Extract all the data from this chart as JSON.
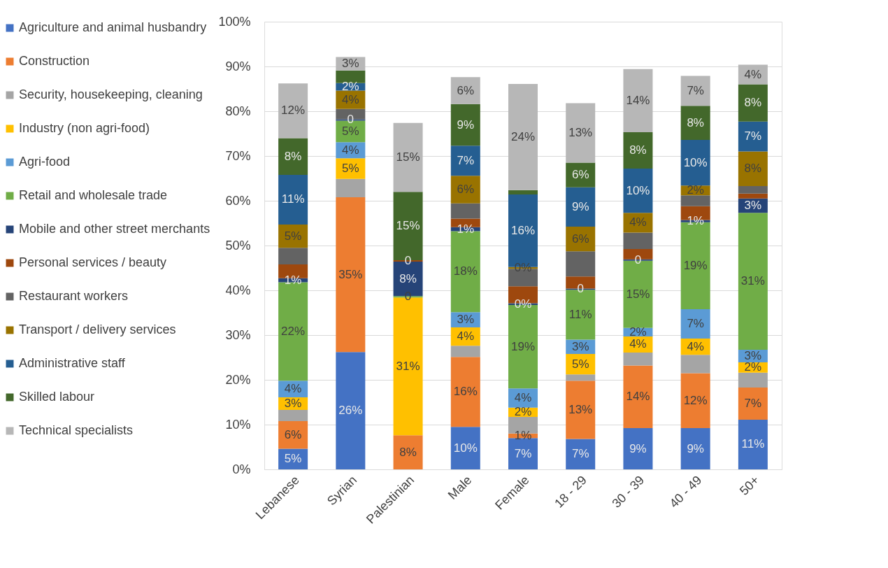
{
  "chart_data": {
    "type": "bar",
    "stacked": true,
    "categories": [
      "Lebanese",
      "Syrian",
      "Palestinian",
      "Male",
      "Female",
      "18 - 29",
      "30 - 39",
      "40 - 49",
      "50+"
    ],
    "ylim": [
      0,
      100
    ],
    "yticks": [
      {
        "value": 0,
        "label": "0%"
      },
      {
        "value": 10,
        "label": "10%"
      },
      {
        "value": 20,
        "label": "20%"
      },
      {
        "value": 30,
        "label": "30%"
      },
      {
        "value": 40,
        "label": "40%"
      },
      {
        "value": 50,
        "label": "50%"
      },
      {
        "value": 60,
        "label": "60%"
      },
      {
        "value": 70,
        "label": "70%"
      },
      {
        "value": 80,
        "label": "80%"
      },
      {
        "value": 90,
        "label": "90%"
      },
      {
        "value": 100,
        "label": "100%"
      }
    ],
    "grid": "y",
    "legend": "left",
    "series": [
      {
        "name": "Agriculture and animal husbandry",
        "color": "#4472c4",
        "values": [
          4.6,
          26.2,
          0,
          9.5,
          7.0,
          6.8,
          9.2,
          9.2,
          11.1
        ],
        "value_labels": [
          "5%",
          "26%",
          null,
          "10%",
          "7%",
          "7%",
          "9%",
          "9%",
          "11%"
        ]
      },
      {
        "name": "Construction",
        "color": "#ed7d31",
        "values": [
          6.2,
          34.6,
          7.6,
          15.6,
          1.0,
          13.0,
          14.0,
          12.3,
          7.2
        ],
        "value_labels": [
          "6%",
          "35%",
          "8%",
          "16%",
          "1%",
          "13%",
          "14%",
          "12%",
          "7%"
        ]
      },
      {
        "name": "Security, housekeeping, cleaning",
        "color": "#a5a5a5",
        "values": [
          2.5,
          4.1,
          0,
          2.5,
          3.7,
          1.4,
          2.9,
          4.1,
          3.3
        ],
        "value_labels": [
          null,
          null,
          null,
          null,
          null,
          null,
          null,
          null,
          null
        ]
      },
      {
        "name": "Industry (non agri-food)",
        "color": "#ffc000",
        "values": [
          2.8,
          4.6,
          30.8,
          4.1,
          2.1,
          4.6,
          3.6,
          3.6,
          2.3
        ],
        "value_labels": [
          "3%",
          "5%",
          "31%",
          "4%",
          "2%",
          "5%",
          "4%",
          "4%",
          "2%"
        ]
      },
      {
        "name": "Agri-food",
        "color": "#5b9bd5",
        "values": [
          3.7,
          3.6,
          0,
          3.4,
          4.3,
          3.2,
          1.9,
          6.6,
          2.8
        ],
        "value_labels": [
          "4%",
          "4%",
          null,
          "3%",
          "4%",
          "3%",
          "2%",
          "7%",
          "3%"
        ]
      },
      {
        "name": "Retail and wholesale trade",
        "color": "#70ad47",
        "values": [
          22.0,
          4.8,
          0.3,
          18.1,
          18.6,
          11.1,
          15.0,
          19.4,
          30.6
        ],
        "value_labels": [
          "22%",
          "5%",
          "0",
          "18%",
          "19%",
          "11%",
          "15%",
          "19%",
          "31%"
        ]
      },
      {
        "name": "Mobile and other street merchants",
        "color": "#264478",
        "values": [
          0.9,
          0.3,
          7.7,
          0.9,
          0.4,
          0.3,
          0.3,
          0.5,
          3.2
        ],
        "value_labels": [
          "1%",
          "0",
          "8%",
          "1%",
          "0%",
          "0",
          "0",
          "1%",
          "3%"
        ]
      },
      {
        "name": "Personal services / beauty",
        "color": "#9e480e",
        "values": [
          3.1,
          0,
          0.3,
          1.9,
          3.8,
          2.7,
          2.3,
          3.1,
          1.1
        ],
        "value_labels": [
          null,
          null,
          "0",
          null,
          null,
          null,
          null,
          null,
          null
        ]
      },
      {
        "name": "Restaurant workers",
        "color": "#636363",
        "values": [
          3.7,
          2.3,
          0,
          3.4,
          3.9,
          5.6,
          3.7,
          2.4,
          1.7
        ],
        "value_labels": [
          null,
          null,
          null,
          null,
          null,
          null,
          null,
          null,
          null
        ]
      },
      {
        "name": "Transport / delivery services",
        "color": "#997300",
        "values": [
          5.2,
          4.1,
          0,
          6.2,
          0.4,
          5.5,
          4.4,
          2.2,
          7.7
        ],
        "value_labels": [
          "5%",
          "4%",
          null,
          "6%",
          "0%",
          "6%",
          "4%",
          "2%",
          "8%"
        ]
      },
      {
        "name": "Administrative staff",
        "color": "#255e91",
        "values": [
          11.1,
          1.7,
          0,
          6.7,
          16.2,
          8.8,
          9.9,
          10.2,
          6.7
        ],
        "value_labels": [
          "11%",
          "2%",
          null,
          "7%",
          "16%",
          "9%",
          "10%",
          "10%",
          "7%"
        ]
      },
      {
        "name": "Skilled labour",
        "color": "#43682b",
        "values": [
          8.2,
          2.8,
          15.3,
          9.3,
          1.0,
          5.5,
          8.1,
          7.6,
          8.3
        ],
        "value_labels": [
          "8%",
          null,
          "15%",
          "9%",
          null,
          "6%",
          "8%",
          "8%",
          "8%"
        ]
      },
      {
        "name": "Technical specialists",
        "color": "#b7b7b7",
        "values": [
          12.2,
          3.0,
          15.4,
          6.0,
          23.7,
          13.3,
          14.1,
          6.7,
          4.4
        ],
        "value_labels": [
          "12%",
          "3%",
          "15%",
          "6%",
          "24%",
          "13%",
          "14%",
          "7%",
          "4%"
        ]
      }
    ]
  }
}
